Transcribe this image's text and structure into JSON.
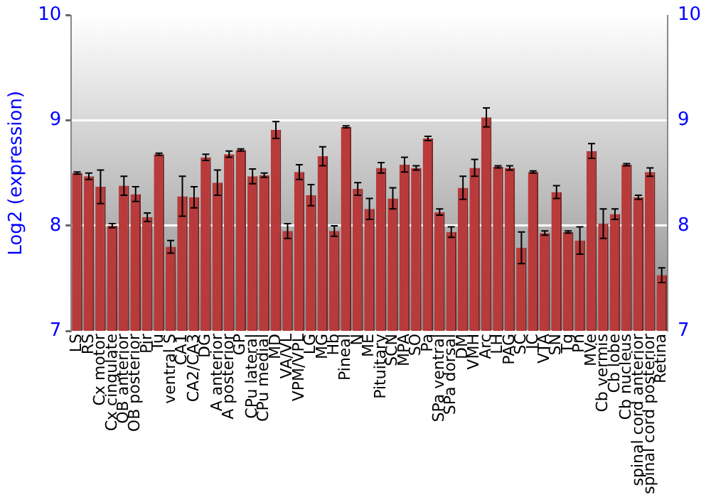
{
  "chart_data": {
    "type": "bar",
    "ylabel": "Log2 (expression)",
    "categories": [
      "LS",
      "RS",
      "Cx motor",
      "Cx cingulate",
      "OB anterior",
      "OB posterior",
      "Pir",
      "Tu",
      "ventral S",
      "CA1",
      "CA2/CA3",
      "DG",
      "A anterior",
      "A posterior",
      "GP",
      "CPu lateral",
      "CPu medial",
      "MD",
      "VA/VL",
      "VPM/VPL",
      "LG",
      "MG",
      "Hb",
      "Pineal",
      "N",
      "ME",
      "Pituitary",
      "SCN",
      "MPA",
      "SO",
      "Pa",
      "SPa ventral",
      "SPa dorsal",
      "DM",
      "VMH",
      "Arc",
      "LH",
      "PAG",
      "SC",
      "IC",
      "VTA",
      "SN",
      "Tg",
      "Pn",
      "MVe",
      "Cb vermis",
      "Cb lobe",
      "Cb nucleus",
      "spinal cord anterior",
      "spinal cord posterior",
      "Retina"
    ],
    "values": [
      8.5,
      8.47,
      8.37,
      8.0,
      8.38,
      8.3,
      8.08,
      8.68,
      7.8,
      8.28,
      8.27,
      8.65,
      8.41,
      8.68,
      8.72,
      8.47,
      8.48,
      8.91,
      7.95,
      8.51,
      8.29,
      8.66,
      7.95,
      8.94,
      8.35,
      8.16,
      8.55,
      8.26,
      8.58,
      8.55,
      8.83,
      8.13,
      7.94,
      8.36,
      8.55,
      9.03,
      8.56,
      8.55,
      7.79,
      8.51,
      7.93,
      8.32,
      7.94,
      7.86,
      8.71,
      8.02,
      8.11,
      8.58,
      8.27,
      8.51,
      7.53
    ],
    "errors": [
      0.01,
      0.03,
      0.16,
      0.02,
      0.09,
      0.07,
      0.04,
      0.01,
      0.06,
      0.19,
      0.1,
      0.03,
      0.12,
      0.03,
      0.01,
      0.07,
      0.02,
      0.08,
      0.07,
      0.07,
      0.1,
      0.09,
      0.05,
      0.01,
      0.06,
      0.1,
      0.05,
      0.1,
      0.07,
      0.02,
      0.02,
      0.03,
      0.05,
      0.11,
      0.08,
      0.09,
      0.01,
      0.02,
      0.15,
      0.01,
      0.02,
      0.06,
      0.01,
      0.13,
      0.07,
      0.14,
      0.05,
      0.01,
      0.02,
      0.04,
      0.07
    ],
    "color": "#b83a3a",
    "ylim": [
      7,
      10
    ],
    "yticks": [
      7,
      8,
      9,
      10
    ],
    "y2lim": [
      7,
      10
    ],
    "y2ticks": [
      7,
      8,
      9,
      10
    ],
    "grid": "y",
    "legend": false
  }
}
